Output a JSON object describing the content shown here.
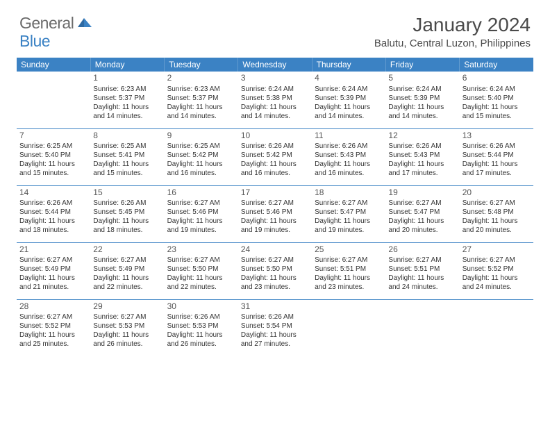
{
  "brand": {
    "part1": "General",
    "part2": "Blue"
  },
  "title": "January 2024",
  "location": "Balutu, Central Luzon, Philippines",
  "style": {
    "header_bg": "#3b82c4",
    "header_fg": "#ffffff",
    "rule_color": "#3b82c4",
    "body_bg": "#ffffff",
    "text_color": "#333333",
    "title_color": "#4a4a4a",
    "cell_font_size": 10,
    "daynum_font_size": 12,
    "title_font_size": 28,
    "location_font_size": 15,
    "header_font_size": 12
  },
  "weekdays": [
    "Sunday",
    "Monday",
    "Tuesday",
    "Wednesday",
    "Thursday",
    "Friday",
    "Saturday"
  ],
  "month": {
    "start_weekday": 1,
    "num_days": 31
  },
  "days": {
    "1": {
      "sunrise": "6:23 AM",
      "sunset": "5:37 PM",
      "daylight": "11 hours and 14 minutes."
    },
    "2": {
      "sunrise": "6:23 AM",
      "sunset": "5:37 PM",
      "daylight": "11 hours and 14 minutes."
    },
    "3": {
      "sunrise": "6:24 AM",
      "sunset": "5:38 PM",
      "daylight": "11 hours and 14 minutes."
    },
    "4": {
      "sunrise": "6:24 AM",
      "sunset": "5:39 PM",
      "daylight": "11 hours and 14 minutes."
    },
    "5": {
      "sunrise": "6:24 AM",
      "sunset": "5:39 PM",
      "daylight": "11 hours and 14 minutes."
    },
    "6": {
      "sunrise": "6:24 AM",
      "sunset": "5:40 PM",
      "daylight": "11 hours and 15 minutes."
    },
    "7": {
      "sunrise": "6:25 AM",
      "sunset": "5:40 PM",
      "daylight": "11 hours and 15 minutes."
    },
    "8": {
      "sunrise": "6:25 AM",
      "sunset": "5:41 PM",
      "daylight": "11 hours and 15 minutes."
    },
    "9": {
      "sunrise": "6:25 AM",
      "sunset": "5:42 PM",
      "daylight": "11 hours and 16 minutes."
    },
    "10": {
      "sunrise": "6:26 AM",
      "sunset": "5:42 PM",
      "daylight": "11 hours and 16 minutes."
    },
    "11": {
      "sunrise": "6:26 AM",
      "sunset": "5:43 PM",
      "daylight": "11 hours and 16 minutes."
    },
    "12": {
      "sunrise": "6:26 AM",
      "sunset": "5:43 PM",
      "daylight": "11 hours and 17 minutes."
    },
    "13": {
      "sunrise": "6:26 AM",
      "sunset": "5:44 PM",
      "daylight": "11 hours and 17 minutes."
    },
    "14": {
      "sunrise": "6:26 AM",
      "sunset": "5:44 PM",
      "daylight": "11 hours and 18 minutes."
    },
    "15": {
      "sunrise": "6:26 AM",
      "sunset": "5:45 PM",
      "daylight": "11 hours and 18 minutes."
    },
    "16": {
      "sunrise": "6:27 AM",
      "sunset": "5:46 PM",
      "daylight": "11 hours and 19 minutes."
    },
    "17": {
      "sunrise": "6:27 AM",
      "sunset": "5:46 PM",
      "daylight": "11 hours and 19 minutes."
    },
    "18": {
      "sunrise": "6:27 AM",
      "sunset": "5:47 PM",
      "daylight": "11 hours and 19 minutes."
    },
    "19": {
      "sunrise": "6:27 AM",
      "sunset": "5:47 PM",
      "daylight": "11 hours and 20 minutes."
    },
    "20": {
      "sunrise": "6:27 AM",
      "sunset": "5:48 PM",
      "daylight": "11 hours and 20 minutes."
    },
    "21": {
      "sunrise": "6:27 AM",
      "sunset": "5:49 PM",
      "daylight": "11 hours and 21 minutes."
    },
    "22": {
      "sunrise": "6:27 AM",
      "sunset": "5:49 PM",
      "daylight": "11 hours and 22 minutes."
    },
    "23": {
      "sunrise": "6:27 AM",
      "sunset": "5:50 PM",
      "daylight": "11 hours and 22 minutes."
    },
    "24": {
      "sunrise": "6:27 AM",
      "sunset": "5:50 PM",
      "daylight": "11 hours and 23 minutes."
    },
    "25": {
      "sunrise": "6:27 AM",
      "sunset": "5:51 PM",
      "daylight": "11 hours and 23 minutes."
    },
    "26": {
      "sunrise": "6:27 AM",
      "sunset": "5:51 PM",
      "daylight": "11 hours and 24 minutes."
    },
    "27": {
      "sunrise": "6:27 AM",
      "sunset": "5:52 PM",
      "daylight": "11 hours and 24 minutes."
    },
    "28": {
      "sunrise": "6:27 AM",
      "sunset": "5:52 PM",
      "daylight": "11 hours and 25 minutes."
    },
    "29": {
      "sunrise": "6:27 AM",
      "sunset": "5:53 PM",
      "daylight": "11 hours and 26 minutes."
    },
    "30": {
      "sunrise": "6:26 AM",
      "sunset": "5:53 PM",
      "daylight": "11 hours and 26 minutes."
    },
    "31": {
      "sunrise": "6:26 AM",
      "sunset": "5:54 PM",
      "daylight": "11 hours and 27 minutes."
    }
  },
  "labels": {
    "sunrise_prefix": "Sunrise: ",
    "sunset_prefix": "Sunset: ",
    "daylight_prefix": "Daylight: "
  }
}
